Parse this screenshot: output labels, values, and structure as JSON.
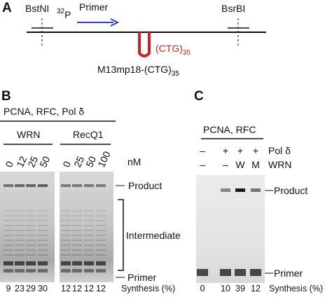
{
  "panel_a": {
    "label": "A",
    "left_site": "BstNI",
    "right_site": "BsrBI",
    "isotope": {
      "mass": "32",
      "element": "P"
    },
    "primer": "Primer",
    "repeat": {
      "base": "(CTG)",
      "sub": "35"
    },
    "construct": {
      "base": "M13mp18-(CTG)",
      "sub": "35"
    }
  },
  "panel_b": {
    "label": "B",
    "condition": "PCNA, RFC, Pol δ",
    "groups": [
      {
        "name": "WRN",
        "concentrations": [
          0,
          12,
          25,
          50
        ],
        "synthesis": [
          9,
          23,
          29,
          30
        ]
      },
      {
        "name": "RecQ1",
        "concentrations": [
          0,
          25,
          50,
          100
        ],
        "synthesis": [
          12,
          12,
          12,
          12
        ]
      }
    ],
    "unit": "nM",
    "bands": {
      "product": "Product",
      "intermediate": "Intermediate",
      "primer": "Primer"
    },
    "synthesis_label": "Synthesis (%)"
  },
  "panel_c": {
    "label": "C",
    "condition": "PCNA, RFC",
    "rows": [
      {
        "name": "Pol δ",
        "marks": [
          "–",
          "+",
          "+",
          "+"
        ]
      },
      {
        "name": "WRN",
        "marks": [
          "–",
          "–",
          "W",
          "M"
        ]
      }
    ],
    "bands": {
      "product": "Product",
      "primer": "Primer"
    },
    "synthesis": [
      0,
      10,
      39,
      12
    ],
    "synthesis_label": "Synthesis (%)"
  }
}
